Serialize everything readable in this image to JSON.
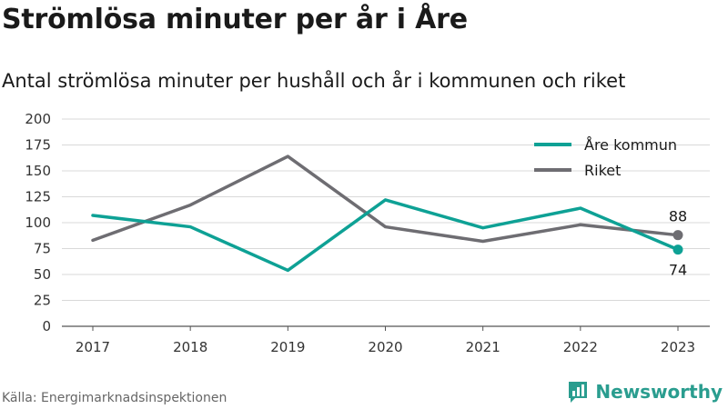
{
  "title": "Strömlösa minuter per år i Åre",
  "subtitle": "Antal strömlösa minuter per hushåll och år i kommunen och riket",
  "source": "Källa: Energimarknadsinspektionen",
  "brand": {
    "name": "Newsworthy",
    "icon": "bar-chart-logo-icon",
    "color": "#2a9d8f"
  },
  "chart_data": {
    "type": "line",
    "x": [
      "2017",
      "2018",
      "2019",
      "2020",
      "2021",
      "2022",
      "2023"
    ],
    "ylim": [
      0,
      200
    ],
    "yticks": [
      0,
      25,
      50,
      75,
      100,
      125,
      150,
      175,
      200
    ],
    "grid": true,
    "legend_position": "top-right",
    "series": [
      {
        "name": "Åre kommun",
        "color": "#0ea195",
        "values": [
          107,
          96,
          54,
          122,
          95,
          114,
          74
        ],
        "end_label": "74"
      },
      {
        "name": "Riket",
        "color": "#6e6d72",
        "values": [
          83,
          117,
          164,
          96,
          82,
          98,
          88
        ],
        "end_label": "88"
      }
    ]
  }
}
